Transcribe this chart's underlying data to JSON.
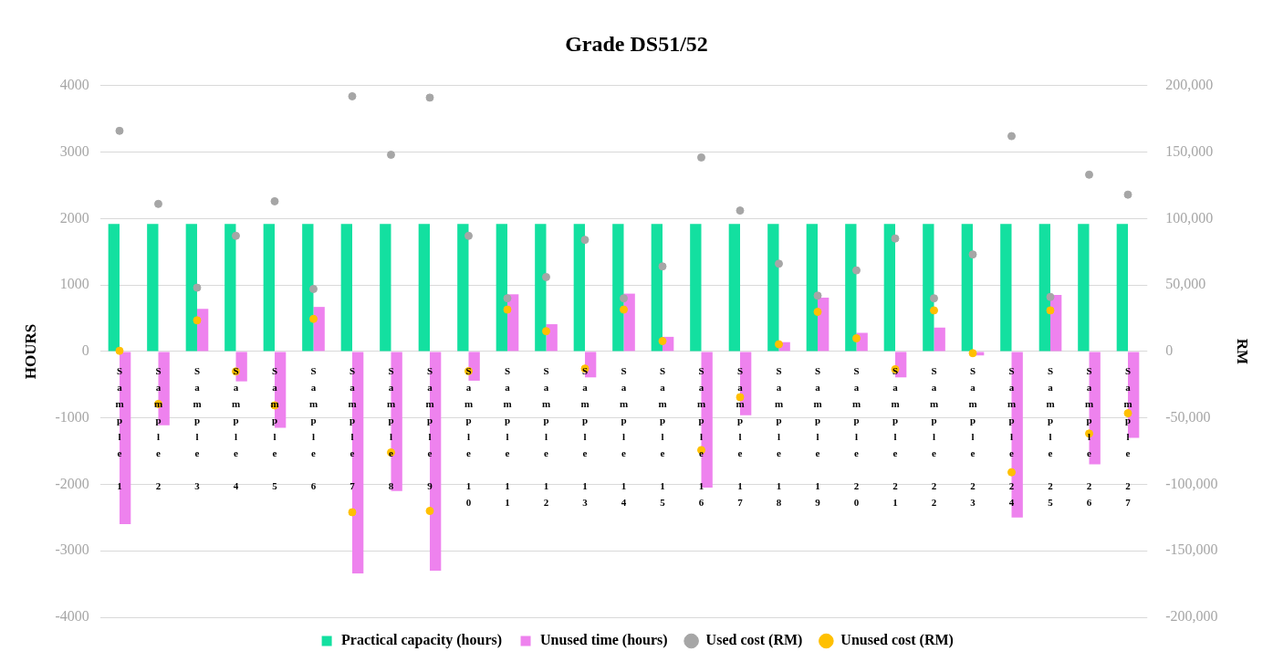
{
  "chart_data": {
    "type": "bar",
    "title": "Grade DS51/52",
    "ylabel": "HOURS",
    "y2label": "RM",
    "categories": [
      "Sample 1",
      "Sample 2",
      "Sample 3",
      "Sample 4",
      "Sample 5",
      "Sample 6",
      "Sample 7",
      "Sample 8",
      "Sample 9",
      "Sample 10",
      "Sample 11",
      "Sample 12",
      "Sample 13",
      "Sample 14",
      "Sample 15",
      "Sample 16",
      "Sample 17",
      "Sample 18",
      "Sample 19",
      "Sample 20",
      "Sample 21",
      "Sample 22",
      "Sample 23",
      "Sample 24",
      "Sample 25",
      "Sample 26",
      "Sample 27"
    ],
    "series": [
      {
        "name": "Practical capacity (hours)",
        "type": "bar",
        "color": "#13e0a0",
        "values": [
          1920,
          1920,
          1920,
          1920,
          1920,
          1920,
          1920,
          1920,
          1920,
          1920,
          1920,
          1920,
          1920,
          1920,
          1920,
          1920,
          1920,
          1920,
          1920,
          1920,
          1920,
          1920,
          1920,
          1920,
          1920,
          1920,
          1920
        ]
      },
      {
        "name": "Unused time (hours)",
        "type": "bar",
        "color": "#ee82ee",
        "values": [
          -2600,
          -1110,
          640,
          -450,
          -1150,
          670,
          -3340,
          -2100,
          -3300,
          -440,
          860,
          410,
          -390,
          870,
          220,
          -2050,
          -960,
          140,
          810,
          280,
          -390,
          360,
          -60,
          -2500,
          850,
          -1700,
          -1300
        ]
      },
      {
        "name": "Used cost (RM)",
        "type": "scatter",
        "axis": "y2",
        "color": "#a6a6a6",
        "values": [
          166000,
          111000,
          48000,
          87000,
          113000,
          47000,
          192000,
          148000,
          191000,
          87000,
          40000,
          56000,
          84000,
          40000,
          64000,
          146000,
          106000,
          66000,
          42000,
          61000,
          85000,
          40000,
          73000,
          162000,
          41000,
          133000,
          118000
        ]
      },
      {
        "name": "Unused cost (RM)",
        "type": "scatter",
        "axis": "y2",
        "color": "#ffc000",
        "values": [
          500,
          -39500,
          23400,
          -15000,
          -40600,
          24500,
          -121000,
          -76000,
          -120000,
          -14800,
          31500,
          15300,
          -12900,
          31500,
          7800,
          -74200,
          -34400,
          5400,
          29800,
          9900,
          -13400,
          30900,
          -1300,
          -90900,
          30900,
          -61800,
          -46500
        ]
      }
    ],
    "ylim": [
      -4000,
      4000
    ],
    "yticks": [
      -4000,
      -3000,
      -2000,
      -1000,
      0,
      1000,
      2000,
      3000,
      4000
    ],
    "y2lim": [
      -200000,
      200000
    ],
    "y2ticks": [
      {
        "value": -200000,
        "label": "-200,000"
      },
      {
        "value": -150000,
        "label": "-150,000"
      },
      {
        "value": -100000,
        "label": "-100,000"
      },
      {
        "value": -50000,
        "label": "-50,000"
      },
      0,
      {
        "value": 50000,
        "label": "50,000"
      },
      {
        "value": 100000,
        "label": "100,000"
      },
      {
        "value": 150000,
        "label": "150,000"
      },
      {
        "value": 200000,
        "label": "200,000"
      }
    ],
    "grid": "y",
    "legend": "bottom",
    "marker": "circle"
  }
}
